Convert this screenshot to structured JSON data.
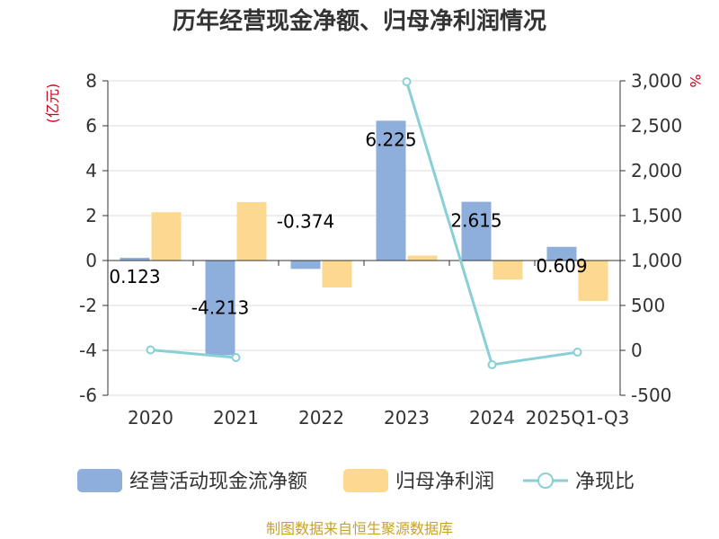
{
  "chart_data": {
    "type": "bar",
    "title": "历年经营现金净额、归母净利润情况",
    "categories": [
      "2020",
      "2021",
      "2022",
      "2023",
      "2024",
      "2025Q1-Q3"
    ],
    "y_left_unit": "(亿元)",
    "y_right_unit": "%",
    "y_left_lim": [
      -6,
      8
    ],
    "y_left_ticks": [
      "8",
      "6",
      "4",
      "2",
      "0",
      "-2",
      "-4",
      "-6"
    ],
    "y_right_lim": [
      -500,
      3000
    ],
    "y_right_ticks": [
      "3,000",
      "2,500",
      "2,000",
      "1,500",
      "1,000",
      "500",
      "0",
      "-500"
    ],
    "series": [
      {
        "name": "经营活动现金流净额",
        "type": "bar",
        "axis": "left",
        "color": "#8eaedb",
        "values": [
          0.123,
          -4.213,
          -0.374,
          6.225,
          2.615,
          0.609
        ],
        "labels": [
          "0.123",
          "-4.213",
          "-0.374",
          "6.225",
          "2.615",
          "0.609"
        ]
      },
      {
        "name": "归母净利润",
        "type": "bar",
        "axis": "left",
        "color": "#fdd891",
        "values": [
          2.15,
          2.6,
          -1.2,
          0.22,
          -0.85,
          -1.8
        ]
      },
      {
        "name": "净现比",
        "type": "line",
        "axis": "right",
        "color": "#88d0d6",
        "values": [
          5,
          -80,
          null,
          2990,
          -160,
          -20
        ]
      }
    ],
    "source": "制图数据来自恒生聚源数据库"
  }
}
